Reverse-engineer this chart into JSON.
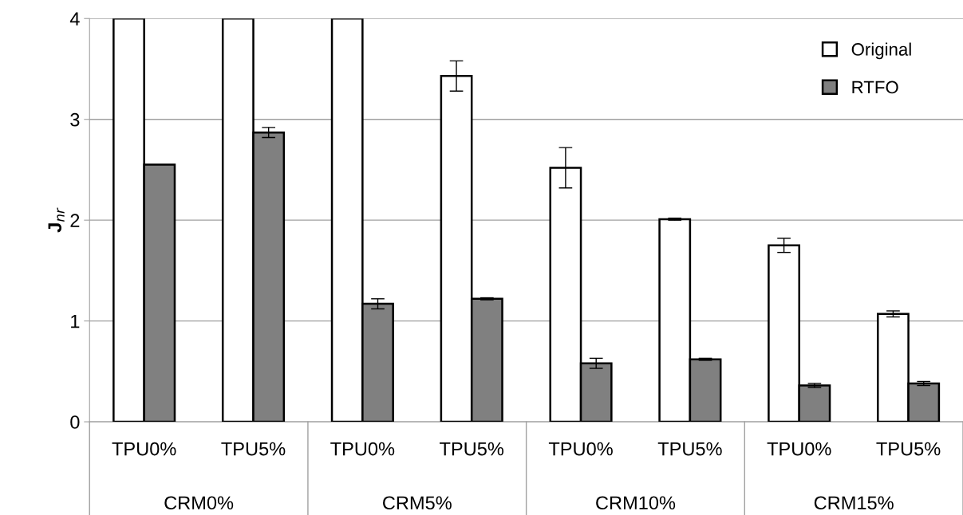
{
  "chart_data": {
    "type": "bar",
    "ylabel": "J$_{nr}$",
    "categories": [
      "TPU0%",
      "TPU5%",
      "TPU0%",
      "TPU5%",
      "TPU0%",
      "TPU5%",
      "TPU0%",
      "TPU5%"
    ],
    "series": [
      {
        "name": "Original",
        "color": "#ffffff",
        "values": [
          4,
          4,
          4,
          3.43,
          2.52,
          2.01,
          1.75,
          1.07
        ],
        "errors": [
          null,
          null,
          null,
          0.15,
          0.2,
          0.01,
          0.07,
          0.03
        ]
      },
      {
        "name": "RTFO",
        "color": "#808080",
        "values": [
          2.55,
          2.87,
          1.17,
          1.22,
          0.58,
          0.62,
          0.36,
          0.38
        ],
        "errors": [
          null,
          0.05,
          0.05,
          0.01,
          0.05,
          0.01,
          0.02,
          0.02
        ]
      }
    ],
    "annotations": [
      "CRM0%",
      "CRM5%",
      "CRM10%",
      "CRM15%"
    ],
    "ylim": [
      0,
      4
    ],
    "yticks": [
      0,
      1,
      2,
      3,
      4
    ],
    "grid": "y",
    "legend": "top right"
  }
}
